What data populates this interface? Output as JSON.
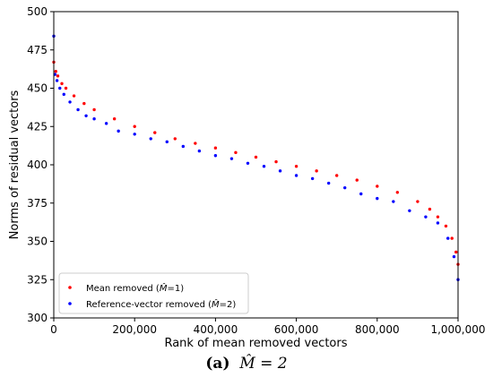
{
  "chart_data": {
    "type": "scatter",
    "xlabel": "Rank of mean removed vectors",
    "ylabel": "Norms of residual vectors",
    "xlim": [
      0,
      1000000
    ],
    "ylim": [
      300,
      500
    ],
    "x_ticks": [
      0,
      200000,
      400000,
      600000,
      800000,
      1000000
    ],
    "x_tick_labels": [
      "0",
      "200,000",
      "400,000",
      "600,000",
      "800,000",
      "1,000,000"
    ],
    "y_ticks": [
      300,
      325,
      350,
      375,
      400,
      425,
      450,
      475,
      500
    ],
    "y_tick_labels": [
      "300",
      "325",
      "350",
      "375",
      "400",
      "425",
      "450",
      "475",
      "500"
    ],
    "grid": false,
    "legend_position": "lower-left",
    "series": [
      {
        "name": "Mean removed (̂M=1)",
        "color": "#ff0000",
        "x": [
          0,
          5000,
          10000,
          20000,
          30000,
          50000,
          75000,
          100000,
          150000,
          200000,
          250000,
          300000,
          350000,
          400000,
          450000,
          500000,
          550000,
          600000,
          650000,
          700000,
          750000,
          800000,
          850000,
          900000,
          930000,
          950000,
          970000,
          985000,
          995000,
          1000000
        ],
        "y": [
          467,
          461,
          458,
          453,
          450,
          445,
          440,
          436,
          430,
          425,
          421,
          417,
          414,
          411,
          408,
          405,
          402,
          399,
          396,
          393,
          390,
          386,
          382,
          376,
          371,
          366,
          360,
          352,
          343,
          335
        ]
      },
      {
        "name": "Reference-vector removed (̂M=2)",
        "color": "#0000ff",
        "x": [
          0,
          3000,
          8000,
          15000,
          25000,
          40000,
          60000,
          80000,
          100000,
          130000,
          160000,
          200000,
          240000,
          280000,
          320000,
          360000,
          400000,
          440000,
          480000,
          520000,
          560000,
          600000,
          640000,
          680000,
          720000,
          760000,
          800000,
          840000,
          880000,
          920000,
          950000,
          975000,
          990000,
          1000000
        ],
        "y": [
          484,
          459,
          455,
          450,
          446,
          441,
          436,
          432,
          430,
          427,
          422,
          420,
          417,
          415,
          412,
          409,
          406,
          404,
          401,
          399,
          396,
          393,
          391,
          388,
          385,
          381,
          378,
          376,
          370,
          366,
          362,
          352,
          340,
          325
        ]
      }
    ]
  },
  "legend": {
    "series1_prefix": "Mean removed (",
    "series1_var": "M̂",
    "series1_suffix": "=1)",
    "series2_prefix": "Reference-vector removed (",
    "series2_var": "M̂",
    "series2_suffix": "=2)"
  },
  "caption": {
    "tag": "(a)",
    "equation": "M̂ = 2"
  }
}
